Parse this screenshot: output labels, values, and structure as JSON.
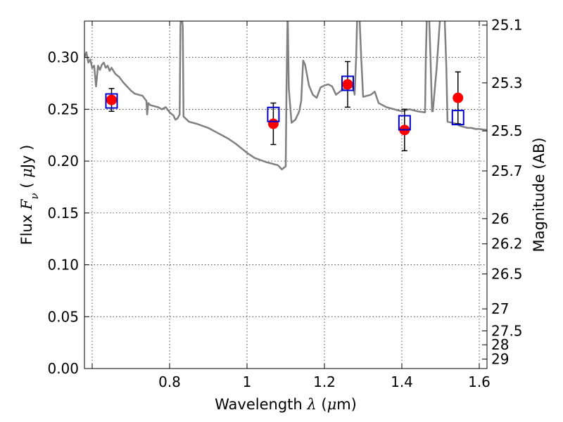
{
  "chart_data": {
    "type": "scatter",
    "xlabel_parts": [
      "Wavelength  ",
      "λ",
      " (",
      "μ",
      "m)"
    ],
    "ylabel_parts": [
      "Flux  ",
      "F",
      "ν",
      "  ( ",
      "μ",
      "Jy )"
    ],
    "y2label": "Magnitude (AB)",
    "xlim": [
      0.58,
      1.62
    ],
    "ylim": [
      0.0,
      0.335
    ],
    "grid": true,
    "x_ticks": [
      {
        "value": 0.6,
        "label": ""
      },
      {
        "value": 0.8,
        "label": "0.8"
      },
      {
        "value": 1.0,
        "label": "1"
      },
      {
        "value": 1.2,
        "label": "1.2"
      },
      {
        "value": 1.4,
        "label": "1.4"
      },
      {
        "value": 1.6,
        "label": "1.6"
      }
    ],
    "y_ticks": [
      {
        "value": 0.0,
        "label": "0.00"
      },
      {
        "value": 0.05,
        "label": "0.05"
      },
      {
        "value": 0.1,
        "label": "0.10"
      },
      {
        "value": 0.15,
        "label": "0.15"
      },
      {
        "value": 0.2,
        "label": "0.20"
      },
      {
        "value": 0.25,
        "label": "0.25"
      },
      {
        "value": 0.3,
        "label": "0.30"
      }
    ],
    "mag_ticks": [
      {
        "mag": 25.1,
        "label": "25.1"
      },
      {
        "mag": 25.3,
        "label": "25.3"
      },
      {
        "mag": 25.5,
        "label": "25.5"
      },
      {
        "mag": 25.7,
        "label": "25.7"
      },
      {
        "mag": 26.0,
        "label": "26"
      },
      {
        "mag": 26.2,
        "label": "26.2"
      },
      {
        "mag": 26.5,
        "label": "26.5"
      },
      {
        "mag": 27.0,
        "label": "27"
      },
      {
        "mag": 27.5,
        "label": "27.5"
      },
      {
        "mag": 28.0,
        "label": "28"
      },
      {
        "mag": 29.0,
        "label": "29"
      }
    ],
    "observed": {
      "color": "#ff0000",
      "points": [
        {
          "x": 0.65,
          "y": 0.259,
          "err": 0.011
        },
        {
          "x": 1.068,
          "y": 0.236,
          "err": 0.02
        },
        {
          "x": 1.26,
          "y": 0.274,
          "err": 0.022
        },
        {
          "x": 1.407,
          "y": 0.23,
          "err": 0.02
        },
        {
          "x": 1.545,
          "y": 0.261,
          "err": 0.025
        }
      ]
    },
    "model_photometry": {
      "color": "#0000cc",
      "points": [
        {
          "x": 0.65,
          "y": 0.258
        },
        {
          "x": 1.068,
          "y": 0.245
        },
        {
          "x": 1.26,
          "y": 0.275
        },
        {
          "x": 1.407,
          "y": 0.237
        },
        {
          "x": 1.545,
          "y": 0.242
        }
      ]
    },
    "spectrum": {
      "color": "#808080",
      "points": [
        [
          0.58,
          0.3
        ],
        [
          0.585,
          0.305
        ],
        [
          0.59,
          0.295
        ],
        [
          0.595,
          0.298
        ],
        [
          0.6,
          0.29
        ],
        [
          0.605,
          0.292
        ],
        [
          0.61,
          0.272
        ],
        [
          0.615,
          0.292
        ],
        [
          0.62,
          0.288
        ],
        [
          0.625,
          0.293
        ],
        [
          0.63,
          0.295
        ],
        [
          0.635,
          0.29
        ],
        [
          0.64,
          0.292
        ],
        [
          0.645,
          0.287
        ],
        [
          0.65,
          0.29
        ],
        [
          0.66,
          0.284
        ],
        [
          0.67,
          0.281
        ],
        [
          0.68,
          0.276
        ],
        [
          0.69,
          0.272
        ],
        [
          0.7,
          0.268
        ],
        [
          0.71,
          0.265
        ],
        [
          0.72,
          0.264
        ],
        [
          0.73,
          0.263
        ],
        [
          0.74,
          0.258
        ],
        [
          0.742,
          0.245
        ],
        [
          0.745,
          0.256
        ],
        [
          0.75,
          0.254
        ],
        [
          0.76,
          0.253
        ],
        [
          0.77,
          0.252
        ],
        [
          0.78,
          0.25
        ],
        [
          0.79,
          0.252
        ],
        [
          0.8,
          0.247
        ],
        [
          0.81,
          0.244
        ],
        [
          0.815,
          0.24
        ],
        [
          0.82,
          0.241
        ],
        [
          0.826,
          0.245
        ],
        [
          0.828,
          0.33
        ],
        [
          0.83,
          0.345
        ],
        [
          0.834,
          0.33
        ],
        [
          0.836,
          0.243
        ],
        [
          0.85,
          0.238
        ],
        [
          0.87,
          0.236
        ],
        [
          0.9,
          0.232
        ],
        [
          0.92,
          0.228
        ],
        [
          0.95,
          0.222
        ],
        [
          0.97,
          0.217
        ],
        [
          1.0,
          0.208
        ],
        [
          1.02,
          0.203
        ],
        [
          1.05,
          0.199
        ],
        [
          1.07,
          0.197
        ],
        [
          1.08,
          0.196
        ],
        [
          1.09,
          0.192
        ],
        [
          1.1,
          0.195
        ],
        [
          1.102,
          0.27
        ],
        [
          1.105,
          0.345
        ],
        [
          1.108,
          0.27
        ],
        [
          1.115,
          0.237
        ],
        [
          1.125,
          0.24
        ],
        [
          1.135,
          0.248
        ],
        [
          1.14,
          0.258
        ],
        [
          1.145,
          0.297
        ],
        [
          1.15,
          0.293
        ],
        [
          1.16,
          0.273
        ],
        [
          1.17,
          0.264
        ],
        [
          1.18,
          0.261
        ],
        [
          1.19,
          0.271
        ],
        [
          1.2,
          0.273
        ],
        [
          1.21,
          0.274
        ],
        [
          1.22,
          0.272
        ],
        [
          1.23,
          0.264
        ],
        [
          1.24,
          0.267
        ],
        [
          1.25,
          0.27
        ],
        [
          1.26,
          0.27
        ],
        [
          1.27,
          0.272
        ],
        [
          1.275,
          0.27
        ],
        [
          1.278,
          0.264
        ],
        [
          1.282,
          0.3
        ],
        [
          1.285,
          0.345
        ],
        [
          1.29,
          0.345
        ],
        [
          1.295,
          0.3
        ],
        [
          1.3,
          0.262
        ],
        [
          1.32,
          0.264
        ],
        [
          1.33,
          0.267
        ],
        [
          1.34,
          0.256
        ],
        [
          1.36,
          0.252
        ],
        [
          1.38,
          0.25
        ],
        [
          1.4,
          0.248
        ],
        [
          1.42,
          0.25
        ],
        [
          1.44,
          0.248
        ],
        [
          1.46,
          0.247
        ],
        [
          1.462,
          0.3
        ],
        [
          1.465,
          0.345
        ],
        [
          1.47,
          0.345
        ],
        [
          1.474,
          0.3
        ],
        [
          1.478,
          0.248
        ],
        [
          1.48,
          0.248
        ],
        [
          1.49,
          0.29
        ],
        [
          1.5,
          0.345
        ],
        [
          1.51,
          0.345
        ],
        [
          1.515,
          0.29
        ],
        [
          1.518,
          0.238
        ],
        [
          1.53,
          0.237
        ],
        [
          1.54,
          0.236
        ],
        [
          1.55,
          0.234
        ],
        [
          1.56,
          0.233
        ],
        [
          1.57,
          0.232
        ],
        [
          1.58,
          0.232
        ],
        [
          1.59,
          0.231
        ],
        [
          1.6,
          0.231
        ],
        [
          1.62,
          0.23
        ]
      ]
    }
  }
}
